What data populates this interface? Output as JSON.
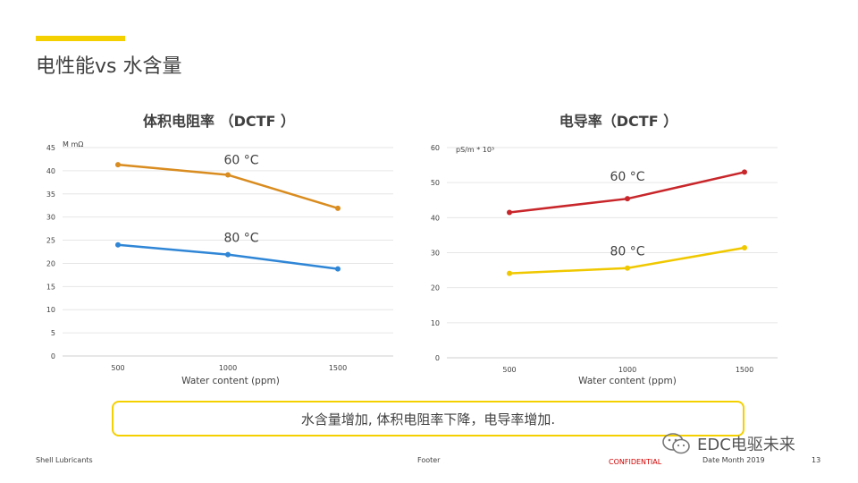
{
  "slide": {
    "title": "电性能vs 水含量",
    "callout": "水含量增加, 体积电阻率下降，电导率增加.",
    "footer_left": "Shell Lubricants",
    "footer_center": "Footer",
    "footer_confidential": "CONFIDENTIAL",
    "footer_date": "Date Month 2019",
    "page_number": "13",
    "watermark": "EDC电驱未来",
    "accent_color": "#f5d000"
  },
  "chart_data": [
    {
      "type": "line",
      "title": "体积电阻率 （DCTF ）",
      "unit_label": "M mΩ",
      "xlabel": "Water content (ppm)",
      "categories": [
        "500",
        "1000",
        "1500"
      ],
      "ylim": [
        0,
        45
      ],
      "yticks": [
        0,
        5,
        10,
        15,
        20,
        25,
        30,
        35,
        40,
        45
      ],
      "grid": true,
      "series": [
        {
          "name": "60 °C",
          "values": [
            41.3,
            39.1,
            31.9
          ],
          "color": "#d98c1f"
        },
        {
          "name": "80 °C",
          "values": [
            24.0,
            21.9,
            18.8
          ],
          "color": "#2f86d6"
        }
      ]
    },
    {
      "type": "line",
      "title": "电导率（DCTF ）",
      "unit_label": "pS/m * 10³",
      "xlabel": "Water content (ppm)",
      "categories": [
        "500",
        "1000",
        "1500"
      ],
      "ylim": [
        0,
        60
      ],
      "yticks": [
        0,
        10,
        20,
        30,
        40,
        50,
        60
      ],
      "grid": true,
      "series": [
        {
          "name": "60 °C",
          "values": [
            41.5,
            45.4,
            53.0
          ],
          "color": "#c8262a"
        },
        {
          "name": "80 °C",
          "values": [
            24.1,
            25.6,
            31.4
          ],
          "color": "#f0c800"
        }
      ]
    }
  ]
}
